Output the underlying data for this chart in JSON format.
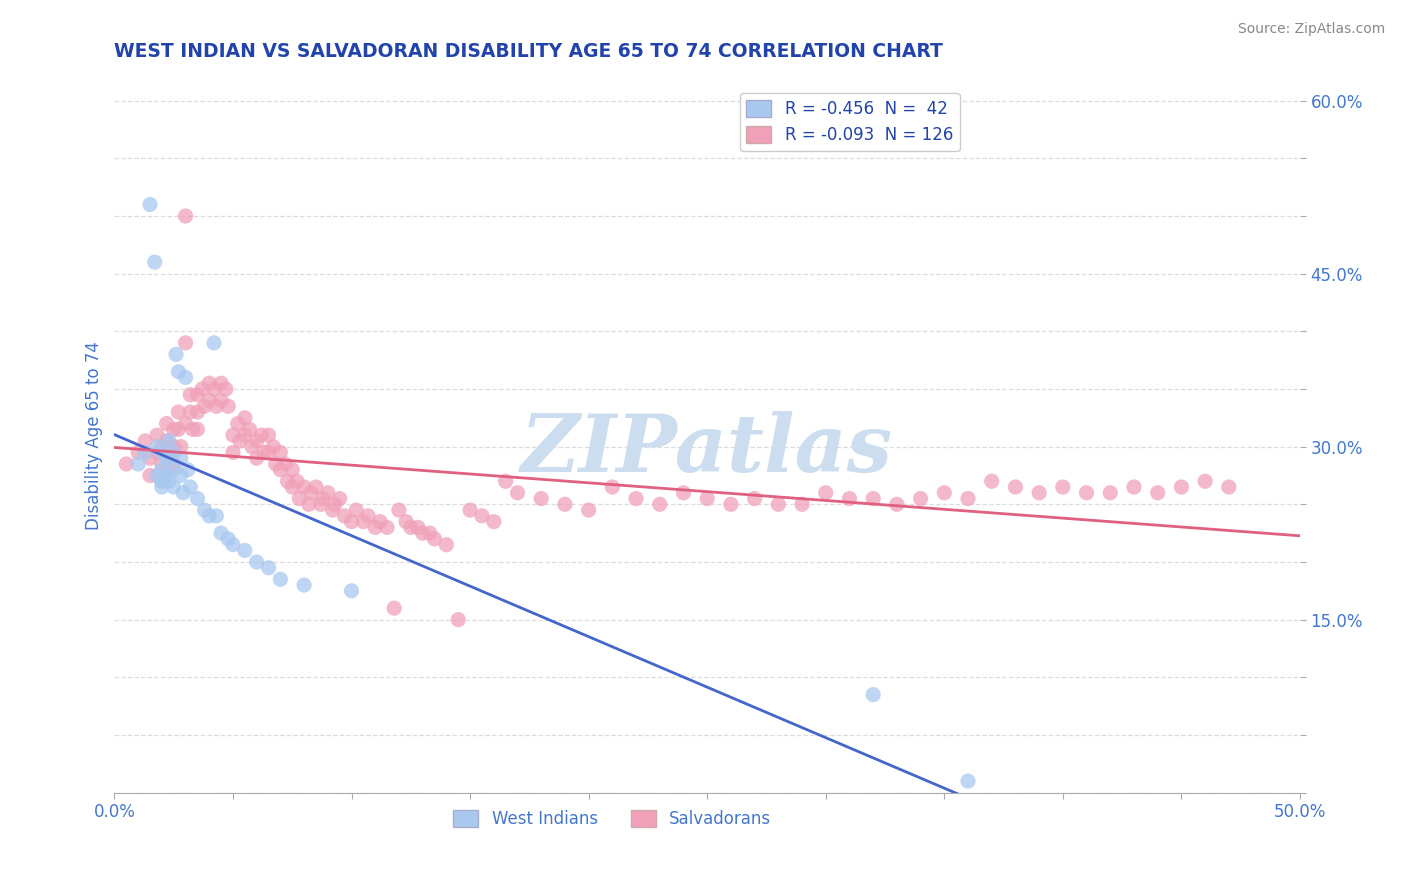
{
  "title": "WEST INDIAN VS SALVADORAN DISABILITY AGE 65 TO 74 CORRELATION CHART",
  "source": "Source: ZipAtlas.com",
  "ylabel": "Disability Age 65 to 74",
  "xlim": [
    0.0,
    0.5
  ],
  "ylim": [
    0.0,
    0.62
  ],
  "xticks": [
    0.0,
    0.05,
    0.1,
    0.15,
    0.2,
    0.25,
    0.3,
    0.35,
    0.4,
    0.45,
    0.5
  ],
  "yticks": [
    0.0,
    0.05,
    0.1,
    0.15,
    0.2,
    0.25,
    0.3,
    0.35,
    0.4,
    0.45,
    0.5,
    0.55,
    0.6
  ],
  "ytick_labels_right": [
    "",
    "",
    "",
    "15.0%",
    "",
    "",
    "30.0%",
    "",
    "",
    "45.0%",
    "",
    "",
    "60.0%"
  ],
  "xtick_labels": [
    "0.0%",
    "",
    "",
    "",
    "",
    "",
    "",
    "",
    "",
    "",
    "50.0%"
  ],
  "west_indian_R": -0.456,
  "west_indian_N": 42,
  "salvadoran_R": -0.093,
  "salvadoran_N": 126,
  "west_indian_color": "#a8c8f0",
  "salvadoran_color": "#f0a0b8",
  "west_indian_line_color": "#4466cc",
  "salvadoran_line_color": "#e06080",
  "legend_label_1": "West Indians",
  "legend_label_2": "Salvadorans",
  "background_color": "#ffffff",
  "grid_color": "#dddddd",
  "title_color": "#2244aa",
  "axis_label_color": "#4477cc",
  "source_color": "#888888",
  "watermark_text": "ZIPatlas",
  "watermark_color": "#ccddef",
  "west_indian_x": [
    0.01,
    0.013,
    0.015,
    0.017,
    0.018,
    0.018,
    0.02,
    0.02,
    0.02,
    0.02,
    0.022,
    0.022,
    0.023,
    0.023,
    0.023,
    0.025,
    0.025,
    0.025,
    0.026,
    0.027,
    0.028,
    0.028,
    0.029,
    0.03,
    0.031,
    0.032,
    0.035,
    0.038,
    0.04,
    0.042,
    0.043,
    0.045,
    0.048,
    0.05,
    0.055,
    0.06,
    0.065,
    0.07,
    0.08,
    0.1,
    0.32,
    0.36
  ],
  "west_indian_y": [
    0.285,
    0.295,
    0.51,
    0.46,
    0.3,
    0.275,
    0.295,
    0.28,
    0.27,
    0.265,
    0.29,
    0.275,
    0.305,
    0.29,
    0.27,
    0.295,
    0.28,
    0.265,
    0.38,
    0.365,
    0.29,
    0.275,
    0.26,
    0.36,
    0.28,
    0.265,
    0.255,
    0.245,
    0.24,
    0.39,
    0.24,
    0.225,
    0.22,
    0.215,
    0.21,
    0.2,
    0.195,
    0.185,
    0.18,
    0.175,
    0.085,
    0.01
  ],
  "salvadoran_x": [
    0.005,
    0.01,
    0.013,
    0.015,
    0.015,
    0.018,
    0.018,
    0.02,
    0.02,
    0.02,
    0.022,
    0.022,
    0.023,
    0.023,
    0.025,
    0.025,
    0.025,
    0.027,
    0.027,
    0.028,
    0.03,
    0.03,
    0.03,
    0.032,
    0.032,
    0.033,
    0.035,
    0.035,
    0.035,
    0.037,
    0.038,
    0.04,
    0.04,
    0.042,
    0.043,
    0.045,
    0.045,
    0.047,
    0.048,
    0.05,
    0.05,
    0.052,
    0.053,
    0.055,
    0.055,
    0.057,
    0.058,
    0.06,
    0.06,
    0.062,
    0.063,
    0.065,
    0.065,
    0.067,
    0.068,
    0.07,
    0.07,
    0.072,
    0.073,
    0.075,
    0.075,
    0.077,
    0.078,
    0.08,
    0.082,
    0.083,
    0.085,
    0.087,
    0.088,
    0.09,
    0.092,
    0.093,
    0.095,
    0.097,
    0.1,
    0.102,
    0.105,
    0.107,
    0.11,
    0.112,
    0.115,
    0.118,
    0.12,
    0.123,
    0.125,
    0.128,
    0.13,
    0.133,
    0.135,
    0.14,
    0.145,
    0.15,
    0.155,
    0.16,
    0.165,
    0.17,
    0.18,
    0.19,
    0.2,
    0.21,
    0.22,
    0.23,
    0.24,
    0.25,
    0.26,
    0.27,
    0.28,
    0.29,
    0.3,
    0.31,
    0.32,
    0.33,
    0.34,
    0.35,
    0.36,
    0.37,
    0.38,
    0.39,
    0.4,
    0.41,
    0.42,
    0.43,
    0.44,
    0.45,
    0.46,
    0.47
  ],
  "salvadoran_y": [
    0.285,
    0.295,
    0.305,
    0.29,
    0.275,
    0.31,
    0.295,
    0.3,
    0.285,
    0.27,
    0.32,
    0.305,
    0.295,
    0.28,
    0.315,
    0.3,
    0.285,
    0.33,
    0.315,
    0.3,
    0.5,
    0.39,
    0.32,
    0.345,
    0.33,
    0.315,
    0.345,
    0.33,
    0.315,
    0.35,
    0.335,
    0.355,
    0.34,
    0.35,
    0.335,
    0.355,
    0.34,
    0.35,
    0.335,
    0.31,
    0.295,
    0.32,
    0.305,
    0.325,
    0.31,
    0.315,
    0.3,
    0.305,
    0.29,
    0.31,
    0.295,
    0.31,
    0.295,
    0.3,
    0.285,
    0.295,
    0.28,
    0.285,
    0.27,
    0.28,
    0.265,
    0.27,
    0.255,
    0.265,
    0.25,
    0.26,
    0.265,
    0.25,
    0.255,
    0.26,
    0.245,
    0.25,
    0.255,
    0.24,
    0.235,
    0.245,
    0.235,
    0.24,
    0.23,
    0.235,
    0.23,
    0.16,
    0.245,
    0.235,
    0.23,
    0.23,
    0.225,
    0.225,
    0.22,
    0.215,
    0.15,
    0.245,
    0.24,
    0.235,
    0.27,
    0.26,
    0.255,
    0.25,
    0.245,
    0.265,
    0.255,
    0.25,
    0.26,
    0.255,
    0.25,
    0.255,
    0.25,
    0.25,
    0.26,
    0.255,
    0.255,
    0.25,
    0.255,
    0.26,
    0.255,
    0.27,
    0.265,
    0.26,
    0.265,
    0.26,
    0.26,
    0.265,
    0.26,
    0.265,
    0.27,
    0.265
  ]
}
